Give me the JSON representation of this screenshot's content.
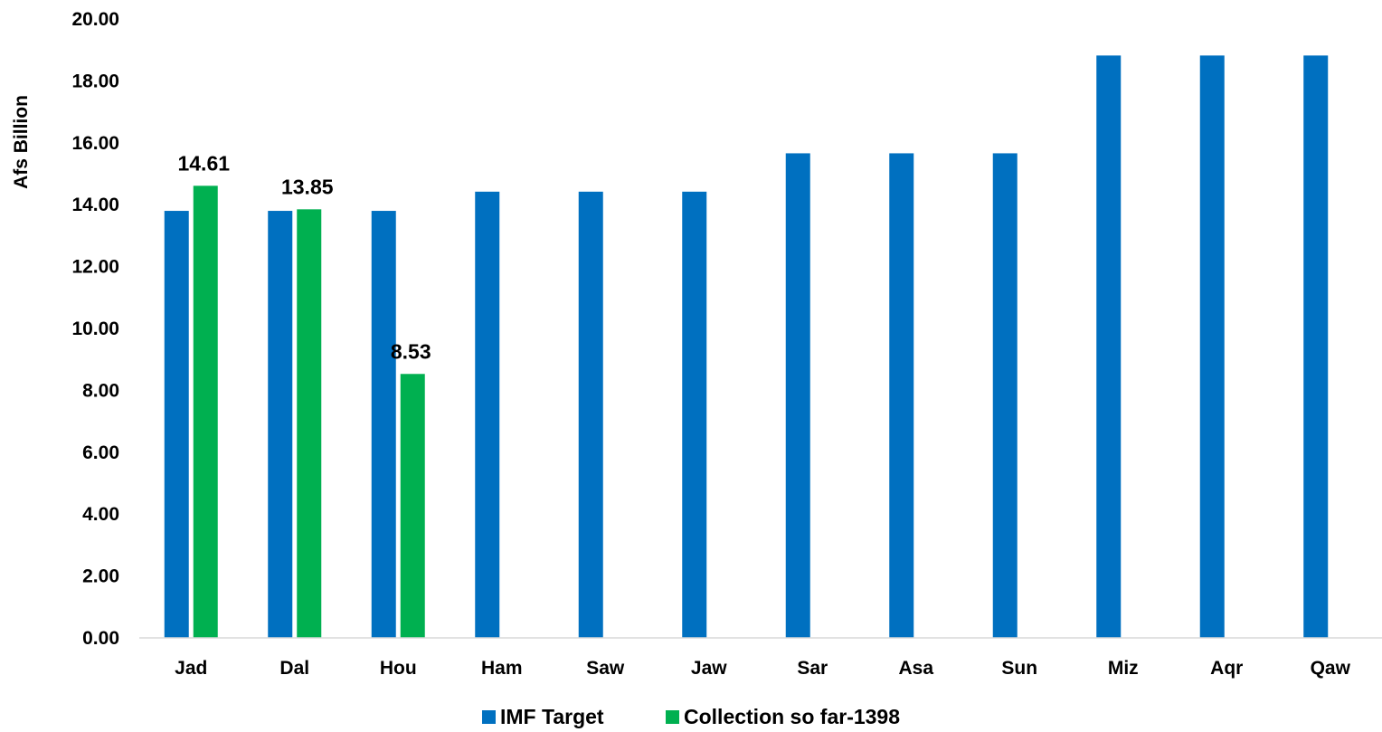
{
  "chart_data": {
    "type": "bar",
    "title": "",
    "xlabel": "",
    "ylabel": "Afs Billion",
    "ylim": [
      0,
      20
    ],
    "ytick_step": 2,
    "ytick_format": "fixed2",
    "grid": false,
    "legend_position": "bottom",
    "categories": [
      "Jad",
      "Dal",
      "Hou",
      "Ham",
      "Saw",
      "Jaw",
      "Sar",
      "Asa",
      "Sun",
      "Miz",
      "Aqr",
      "Qaw"
    ],
    "series": [
      {
        "name": "IMF Target",
        "color": "#0070C0",
        "values": [
          13.8,
          13.8,
          13.8,
          14.42,
          14.42,
          14.42,
          15.66,
          15.66,
          15.66,
          18.82,
          18.82,
          18.82
        ],
        "show_labels": false
      },
      {
        "name": "Collection so far-1398",
        "color": "#00B050",
        "values": [
          14.61,
          13.85,
          8.53,
          null,
          null,
          null,
          null,
          null,
          null,
          null,
          null,
          null
        ],
        "show_labels": true
      }
    ]
  }
}
